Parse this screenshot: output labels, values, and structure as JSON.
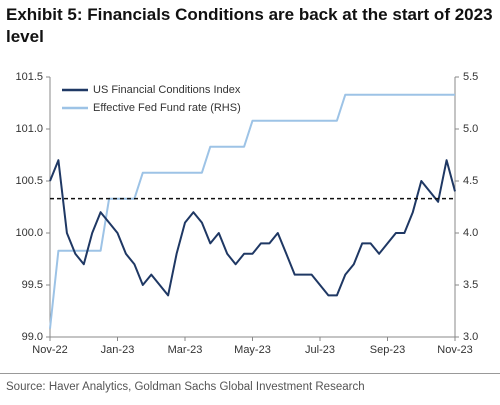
{
  "chart_data": {
    "type": "line",
    "title": "Exhibit 5: Financials Conditions are back at the start of 2023 level",
    "source": "Source: Haver Analytics, Goldman Sachs Global Investment Research",
    "categories": [
      "Nov-22",
      null,
      null,
      null,
      null,
      null,
      null,
      null,
      "Jan-23",
      null,
      null,
      null,
      null,
      null,
      null,
      null,
      "Mar-23",
      null,
      null,
      null,
      null,
      null,
      null,
      null,
      "May-23",
      null,
      null,
      null,
      null,
      null,
      null,
      null,
      "Jul-23",
      null,
      null,
      null,
      null,
      null,
      null,
      null,
      "Sep-23",
      null,
      null,
      null,
      null,
      null,
      null,
      null,
      "Nov-23"
    ],
    "series": [
      {
        "name": "US Financial Conditions Index",
        "color": "#1f3864",
        "values": [
          100.5,
          100.7,
          100.0,
          99.8,
          99.7,
          100.0,
          100.2,
          100.1,
          100.0,
          99.8,
          99.7,
          99.5,
          99.6,
          99.5,
          99.4,
          99.8,
          100.1,
          100.2,
          100.1,
          99.9,
          100.0,
          99.8,
          99.7,
          99.8,
          99.8,
          99.9,
          99.9,
          100.0,
          99.8,
          99.6,
          99.6,
          99.6,
          99.5,
          99.4,
          99.4,
          99.6,
          99.7,
          99.9,
          99.9,
          99.8,
          99.9,
          100.0,
          100.0,
          100.2,
          100.5,
          100.4,
          100.3,
          100.7,
          100.4
        ]
      },
      {
        "name": "Effective Fed Fund rate (RHS)",
        "color": "#9dc3e6",
        "axis": "y2",
        "values": [
          3.08,
          3.83,
          3.83,
          3.83,
          3.83,
          3.83,
          3.83,
          4.33,
          4.33,
          4.33,
          4.33,
          4.58,
          4.58,
          4.58,
          4.58,
          4.58,
          4.58,
          4.58,
          4.58,
          4.83,
          4.83,
          4.83,
          4.83,
          4.83,
          5.08,
          5.08,
          5.08,
          5.08,
          5.08,
          5.08,
          5.08,
          5.08,
          5.08,
          5.08,
          5.08,
          5.33,
          5.33,
          5.33,
          5.33,
          5.33,
          5.33,
          5.33,
          5.33,
          5.33,
          5.33,
          5.33,
          5.33,
          5.33,
          5.33
        ]
      }
    ],
    "reference_line": 100.33,
    "ylim": [
      99.0,
      101.5
    ],
    "yticks": [
      {
        "value": 99,
        "label": "99.0"
      },
      99.5,
      {
        "value": 100,
        "label": "100.0"
      },
      100.5,
      {
        "value": 101,
        "label": "101.0"
      },
      101.5
    ],
    "y2lim": [
      3.0,
      5.5
    ],
    "y2ticks": [
      {
        "value": 3,
        "label": "3.0"
      },
      3.5,
      {
        "value": 4,
        "label": "4.0"
      },
      4.5,
      {
        "value": 5,
        "label": "5.0"
      },
      5.5
    ],
    "grid": false,
    "legend": "top-left"
  }
}
